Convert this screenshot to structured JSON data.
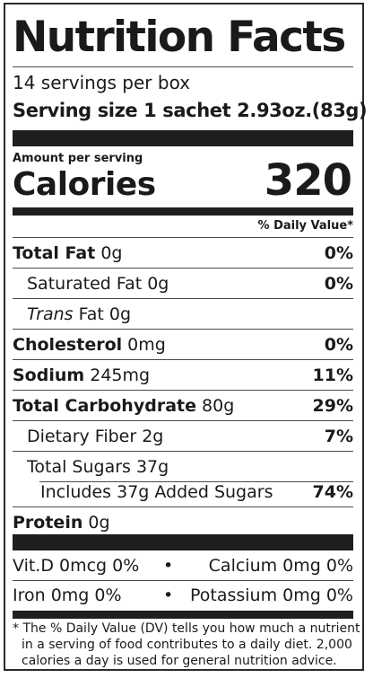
{
  "title": "Nutrition Facts",
  "servings_per_container": "14 servings per box",
  "serving_size": "Serving size 1 sachet 2.93oz.(83g)",
  "amount_per_serving": "Amount per serving",
  "calories_label": "Calories",
  "calories_value": "320",
  "daily_value_header": "% Daily Value*",
  "nutrients": {
    "total_fat": {
      "label": "Total Fat",
      "amount": " 0g",
      "dv": "0%"
    },
    "saturated_fat": {
      "label": "Saturated Fat 0g",
      "dv": "0%"
    },
    "trans_fat": {
      "label_italic": "Trans",
      "label_rest": " Fat 0g"
    },
    "cholesterol": {
      "label": "Cholesterol",
      "amount": " 0mg",
      "dv": "0%"
    },
    "sodium": {
      "label": "Sodium",
      "amount": " 245mg",
      "dv": "11%"
    },
    "total_carbohydrate": {
      "label": "Total Carbohydrate",
      "amount": " 80g",
      "dv": "29%"
    },
    "dietary_fiber": {
      "label": "Dietary Fiber 2g",
      "dv": "7%"
    },
    "total_sugars": {
      "label": "Total Sugars 37g"
    },
    "added_sugars": {
      "label": "Includes 37g Added Sugars",
      "dv": "74%"
    },
    "protein": {
      "label": "Protein",
      "amount": " 0g"
    }
  },
  "vitamins": {
    "vitamin_d": "Vit.D 0mcg 0%",
    "calcium": "Calcium 0mg 0%",
    "iron": "Iron 0mg 0%",
    "potassium": "Potassium 0mg 0%",
    "separator": "•"
  },
  "footnote": {
    "line1": "* The % Daily Value (DV) tells you how much a nutrient",
    "line2": "in a serving of food contributes to a daily diet. 2,000",
    "line3": "calories a day is used for general nutrition advice."
  }
}
